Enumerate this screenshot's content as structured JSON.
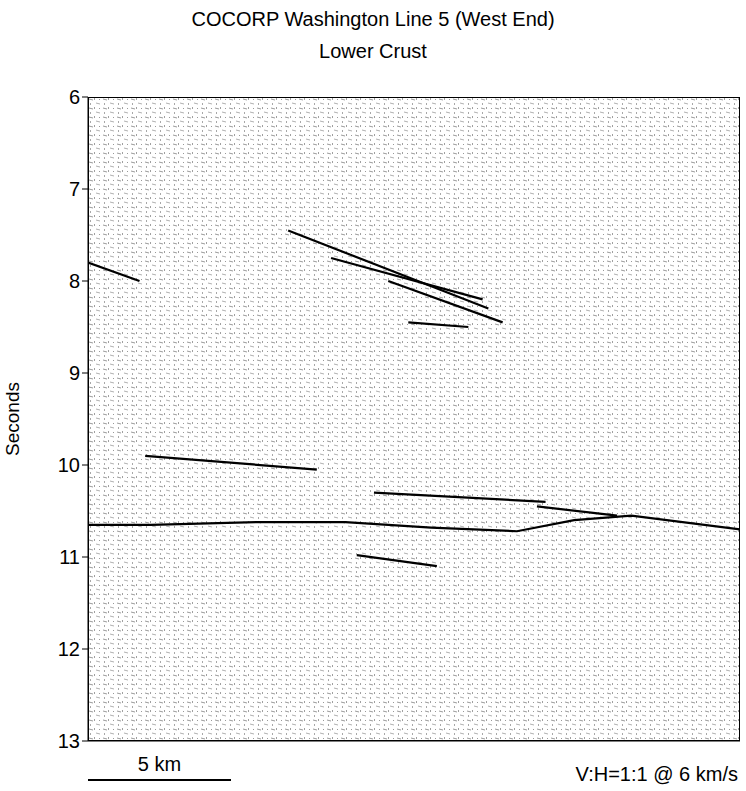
{
  "chart_data": {
    "type": "line",
    "title": "COCORP Washington Line 5 (West End)",
    "subtitle": "Lower Crust",
    "y_label": "Seconds",
    "xlim": [
      0,
      22.8
    ],
    "ylim": [
      6,
      13
    ],
    "yticks": [
      6,
      7,
      8,
      9,
      10,
      11,
      12,
      13
    ],
    "tick_labels": "y",
    "scale_bar": {
      "length": 5,
      "label": "5 km"
    },
    "annotation": "V:H=1:1 @ 6 km/s",
    "series": [
      {
        "color": "#000000",
        "x": [
          7.0,
          14.0
        ],
        "values": [
          7.45,
          8.3
        ]
      },
      {
        "color": "#000000",
        "x": [
          8.5,
          13.8
        ],
        "values": [
          7.75,
          8.2
        ]
      },
      {
        "color": "#000000",
        "x": [
          10.5,
          14.5
        ],
        "values": [
          8.0,
          8.45
        ]
      },
      {
        "color": "#000000",
        "x": [
          0,
          1.8
        ],
        "values": [
          7.8,
          8.0
        ]
      },
      {
        "color": "#000000",
        "x": [
          11.2,
          13.3
        ],
        "values": [
          8.45,
          8.5
        ]
      },
      {
        "color": "#000000",
        "x": [
          2,
          8
        ],
        "values": [
          9.9,
          10.05
        ]
      },
      {
        "color": "#000000",
        "x": [
          10,
          16
        ],
        "values": [
          10.3,
          10.4
        ]
      },
      {
        "color": "#000000",
        "x": [
          0,
          2.2,
          6,
          9,
          12,
          15,
          17,
          19,
          22.8
        ],
        "values": [
          10.65,
          10.65,
          10.62,
          10.62,
          10.68,
          10.72,
          10.6,
          10.55,
          10.7
        ]
      },
      {
        "color": "#000000",
        "x": [
          15.7,
          18.5
        ],
        "values": [
          10.45,
          10.55
        ]
      },
      {
        "color": "#000000",
        "x": [
          9.4,
          12.2
        ],
        "values": [
          10.98,
          11.1
        ]
      }
    ]
  }
}
